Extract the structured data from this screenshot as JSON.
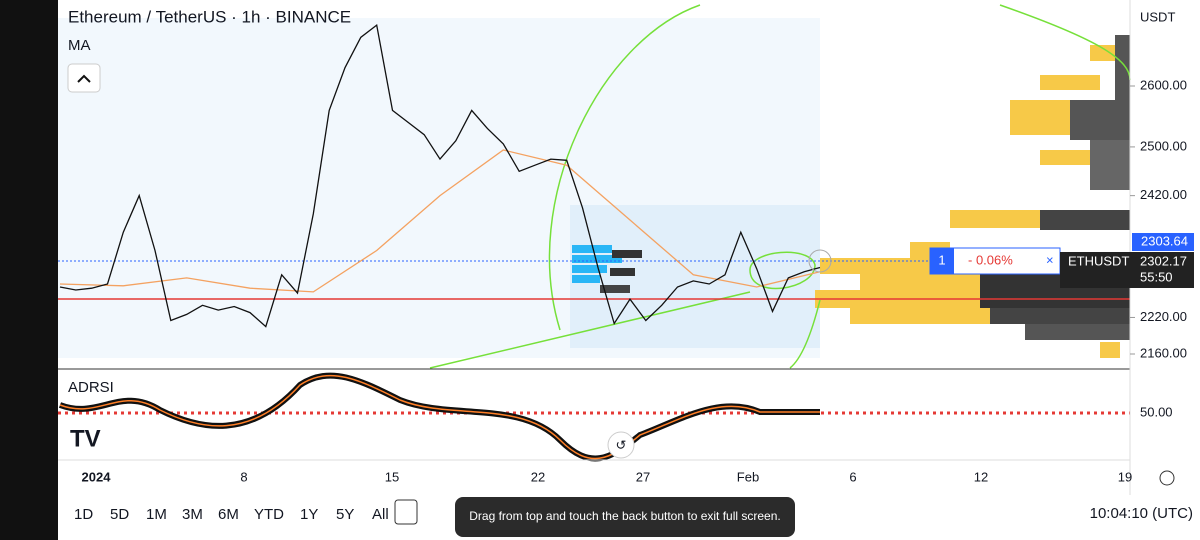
{
  "header": {
    "title": "Ethereum / TetherUS · 1h · BINANCE",
    "indicator": "MA",
    "currency": "USDT"
  },
  "price_axis": {
    "ticks": [
      {
        "value": 2600,
        "label": "2600.00"
      },
      {
        "value": 2500,
        "label": "2500.00"
      },
      {
        "value": 2420,
        "label": "2420.00"
      },
      {
        "value": 2220,
        "label": "2220.00"
      },
      {
        "value": 2160,
        "label": "2160.00"
      }
    ],
    "last_price": {
      "value": 2303.64,
      "label": "2303.64"
    },
    "symbol_price": {
      "value": 2302.17,
      "label": "2302.17"
    },
    "countdown": "55:50"
  },
  "price_series": [
    2270,
    2265,
    2268,
    2275,
    2360,
    2420,
    2330,
    2215,
    2225,
    2240,
    2232,
    2238,
    2228,
    2205,
    2290,
    2260,
    2390,
    2560,
    2630,
    2680,
    2700,
    2560,
    2540,
    2520,
    2480,
    2510,
    2560,
    2530,
    2505,
    2460,
    2470,
    2480,
    2478,
    2400,
    2300,
    2210,
    2250,
    2215,
    2240,
    2270,
    2280,
    2275,
    2290,
    2360,
    2300,
    2230,
    2285,
    2295,
    2302
  ],
  "ma_series": [
    2275,
    2272,
    2285,
    2268,
    2262,
    2330,
    2420,
    2495,
    2470,
    2380,
    2290,
    2270,
    2295
  ],
  "order": {
    "qty": "1",
    "change": "- 0.06%",
    "symbol": "ETHUSDT"
  },
  "oscillator": {
    "name": "ADRSI",
    "level": "50.00"
  },
  "time_axis": [
    "2024",
    "8",
    "15",
    "22",
    "27",
    "Feb",
    "6",
    "12",
    "19"
  ],
  "toolbar": [
    "1D",
    "5D",
    "1M",
    "3M",
    "6M",
    "YTD",
    "1Y",
    "5Y",
    "All"
  ],
  "toast": "Drag from top and touch the back button to exit full screen.",
  "clock": "10:04:10 (UTC)"
}
